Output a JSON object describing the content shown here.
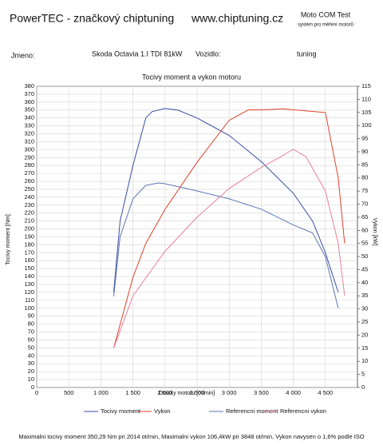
{
  "header": {
    "brand": "PowerTEC - značkový chiptuning",
    "web": "www.chiptuning.cz",
    "system": "Moto COM Test",
    "system_sub": "systém pro měření motorů",
    "name_label": "Jmeno:",
    "vehicle": "Skoda Octavia 1.I TDI 81kW",
    "vehicle_label": "Vozidlo:",
    "mode": "tuning"
  },
  "chart_data": {
    "type": "line",
    "title": "Tocivy moment a vykon motoru",
    "xlabel": "Otacky motoru [ot/min]",
    "ylabel": "Tocivy moment [Nm]",
    "y2label": "Vykon [kW]",
    "xlim": [
      0,
      5000
    ],
    "xticks": [
      0,
      500,
      {
        "value": 1000,
        "label": "1 000"
      },
      {
        "value": 1500,
        "label": "1 500"
      },
      {
        "value": 2000,
        "label": "2 000"
      },
      {
        "value": 2500,
        "label": "2 500"
      },
      {
        "value": 3000,
        "label": "3 000"
      },
      {
        "value": 3500,
        "label": "3 500"
      },
      {
        "value": 4000,
        "label": "4 000"
      },
      {
        "value": 4500,
        "label": "4 500"
      }
    ],
    "ylim": [
      0,
      380
    ],
    "yticks": [
      0,
      10,
      20,
      30,
      40,
      50,
      60,
      70,
      80,
      90,
      100,
      110,
      120,
      130,
      140,
      150,
      160,
      170,
      180,
      190,
      200,
      210,
      220,
      230,
      240,
      250,
      260,
      270,
      280,
      290,
      300,
      310,
      320,
      330,
      340,
      350,
      360,
      370,
      380
    ],
    "y2lim": [
      0,
      115
    ],
    "y2ticks": [
      0,
      5,
      10,
      15,
      20,
      25,
      30,
      35,
      40,
      45,
      50,
      55,
      60,
      65,
      70,
      75,
      80,
      85,
      90,
      95,
      100,
      105,
      110,
      115
    ],
    "grid": true,
    "series": [
      {
        "name": "Tocivy moment",
        "color": "#3a4ea6",
        "axis": "y",
        "x": [
          1200,
          1300,
          1500,
          1700,
          1800,
          2000,
          2200,
          2500,
          3000,
          3500,
          4000,
          4300,
          4500,
          4700
        ],
        "values": [
          120,
          210,
          280,
          340,
          348,
          352,
          350,
          340,
          318,
          285,
          245,
          210,
          170,
          120
        ]
      },
      {
        "name": "Vykon",
        "color": "#e0402a",
        "axis": "y2",
        "x": [
          1200,
          1500,
          1700,
          2000,
          2500,
          3000,
          3300,
          3500,
          3848,
          4000,
          4500,
          4700,
          4800
        ],
        "values": [
          15,
          42,
          55,
          68,
          86,
          102,
          106,
          106,
          106.4,
          106,
          105,
          80,
          55
        ]
      },
      {
        "name": "Referencni moment",
        "color": "#5a74b4",
        "axis": "y",
        "x": [
          1200,
          1300,
          1500,
          1700,
          1900,
          2000,
          2500,
          3000,
          3500,
          4000,
          4300,
          4500,
          4700
        ],
        "values": [
          115,
          190,
          238,
          255,
          258,
          257,
          248,
          238,
          225,
          205,
          195,
          165,
          100
        ]
      },
      {
        "name": "Referencni vykon",
        "color": "#e8809a",
        "axis": "y2",
        "x": [
          1200,
          1500,
          2000,
          2500,
          3000,
          3500,
          3800,
          4000,
          4200,
          4500,
          4700,
          4800
        ],
        "values": [
          15,
          35,
          52,
          65,
          76,
          84,
          88,
          91,
          88,
          75,
          55,
          35
        ]
      }
    ],
    "note": "Maximalni tocivy moment 350,29 Nm pri 2014 ot/min, Maximalni vykon 106,4kW pri 3848 ot/min, Vykon navysen o 1,6% podle ISO"
  }
}
